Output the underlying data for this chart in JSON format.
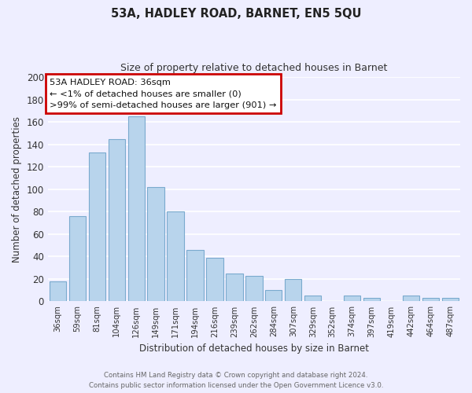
{
  "title": "53A, HADLEY ROAD, BARNET, EN5 5QU",
  "subtitle": "Size of property relative to detached houses in Barnet",
  "xlabel": "Distribution of detached houses by size in Barnet",
  "ylabel": "Number of detached properties",
  "bar_color": "#b8d4ec",
  "bar_edge_color": "#7aaace",
  "categories": [
    "36sqm",
    "59sqm",
    "81sqm",
    "104sqm",
    "126sqm",
    "149sqm",
    "171sqm",
    "194sqm",
    "216sqm",
    "239sqm",
    "262sqm",
    "284sqm",
    "307sqm",
    "329sqm",
    "352sqm",
    "374sqm",
    "397sqm",
    "419sqm",
    "442sqm",
    "464sqm",
    "487sqm"
  ],
  "values": [
    18,
    76,
    133,
    145,
    165,
    102,
    80,
    46,
    39,
    25,
    23,
    10,
    20,
    5,
    0,
    5,
    3,
    0,
    5,
    3,
    3
  ],
  "ylim": [
    0,
    200
  ],
  "yticks": [
    0,
    20,
    40,
    60,
    80,
    100,
    120,
    140,
    160,
    180,
    200
  ],
  "annotation_title": "53A HADLEY ROAD: 36sqm",
  "annotation_line1": "← <1% of detached houses are smaller (0)",
  "annotation_line2": ">99% of semi-detached houses are larger (901) →",
  "annotation_edge_color": "#cc0000",
  "annotation_face_color": "#ffffff",
  "background_color": "#eeeeff",
  "grid_color": "#ffffff",
  "footer_line1": "Contains HM Land Registry data © Crown copyright and database right 2024.",
  "footer_line2": "Contains public sector information licensed under the Open Government Licence v3.0."
}
